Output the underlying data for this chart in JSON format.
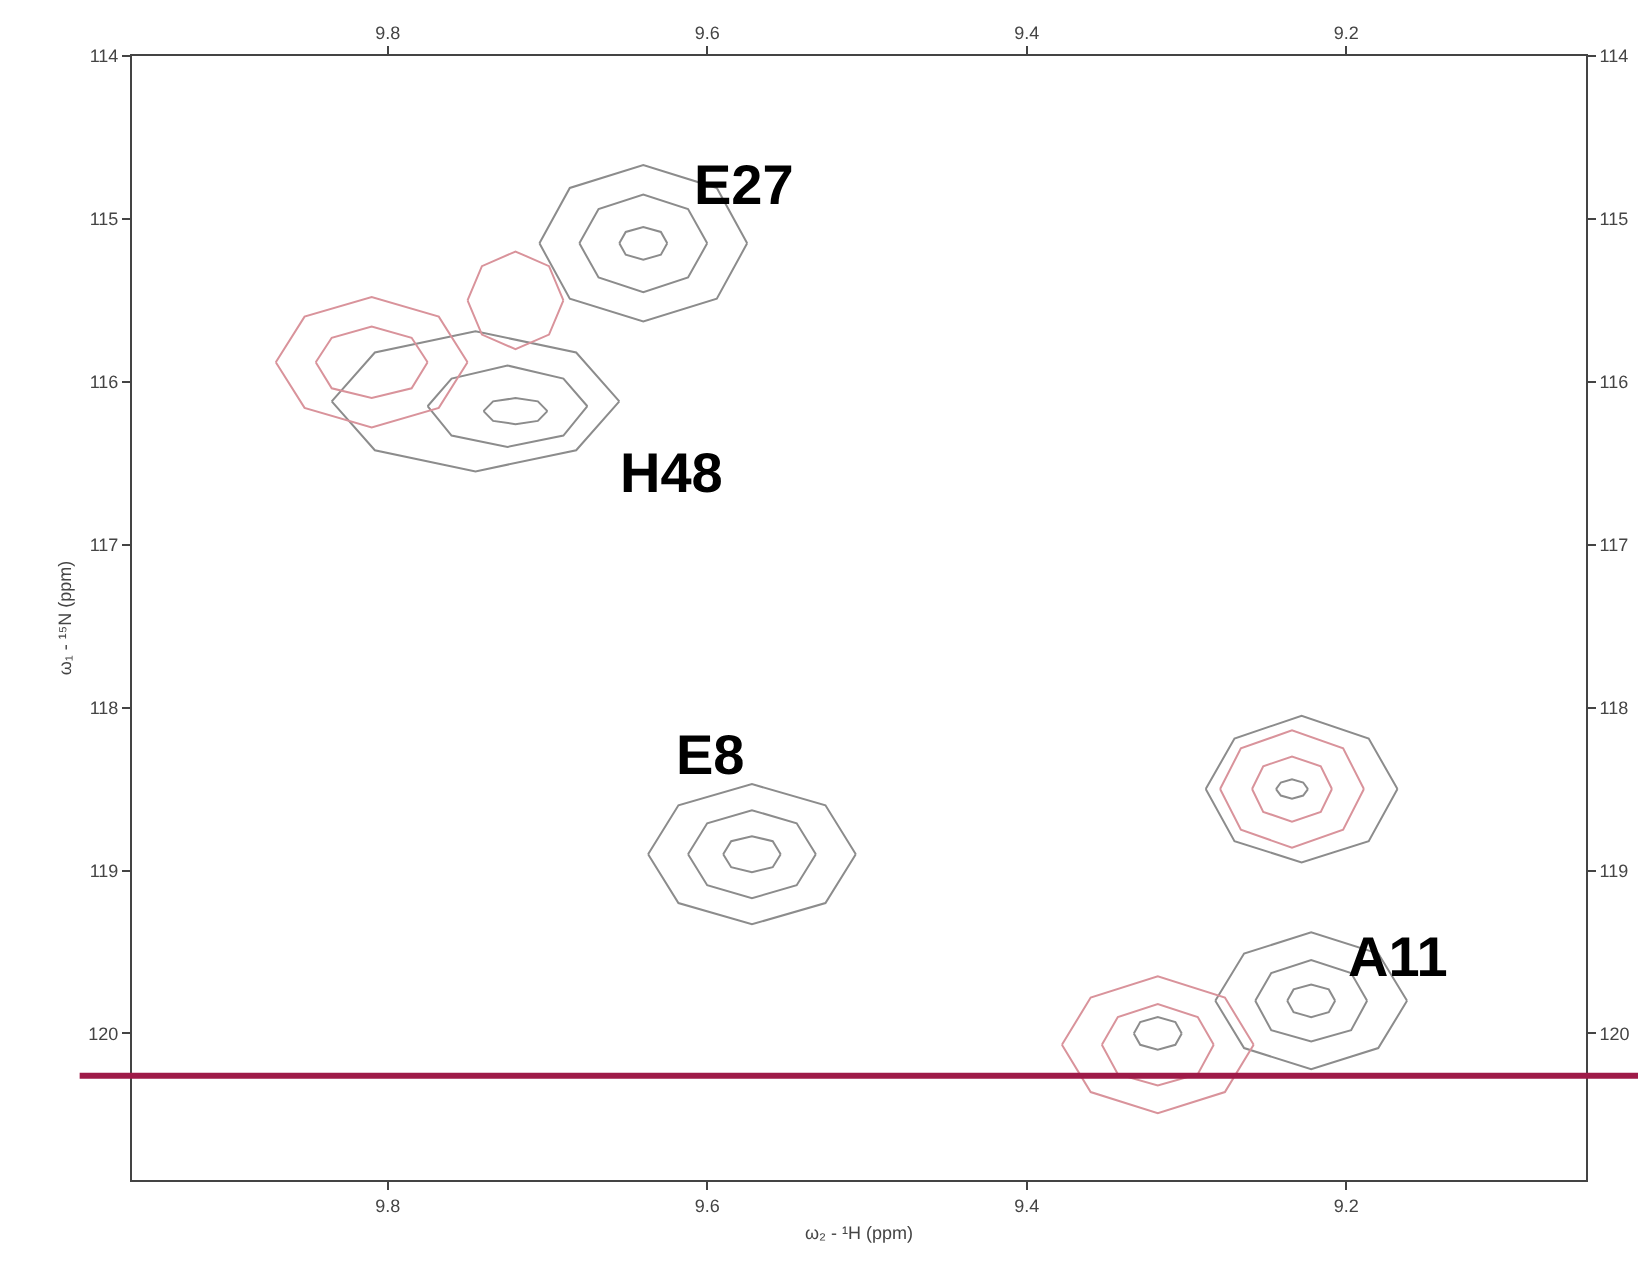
{
  "chart_data": {
    "type": "line",
    "xlabel": "ω₂ - ¹H (ppm)",
    "ylabel": "ω₁ - ¹⁵N (ppm)",
    "xlim": [
      9.96,
      9.05
    ],
    "xticks": [
      9.8,
      9.6,
      9.4,
      9.2
    ],
    "x2lim": [
      9.96,
      9.05
    ],
    "x2ticks": [
      9.8,
      9.6,
      9.4,
      9.2
    ],
    "ylim": [
      120.9,
      114
    ],
    "yticks": [
      114,
      115,
      116,
      117,
      118,
      119,
      120
    ],
    "y2lim": [
      120.9,
      114
    ],
    "y2ticks": [
      114,
      115,
      116,
      117,
      118,
      119,
      120
    ],
    "line_style": "solid",
    "series": [
      {
        "color": "#8c8c8c",
        "x": [
          9.705,
          9.686,
          9.64,
          9.594,
          9.575
        ],
        "values": [
          115.15,
          115.49,
          115.63,
          115.49,
          115.15
        ]
      },
      {
        "color": "#8c8c8c",
        "x": [
          9.575,
          9.594,
          9.64,
          9.686,
          9.705
        ],
        "values": [
          115.15,
          114.81,
          114.67,
          114.81,
          115.15
        ]
      },
      {
        "color": "#8c8c8c",
        "x": [
          9.68,
          9.668,
          9.64,
          9.612,
          9.6
        ],
        "values": [
          115.15,
          115.36,
          115.45,
          115.36,
          115.15
        ]
      },
      {
        "color": "#8c8c8c",
        "x": [
          9.6,
          9.612,
          9.64,
          9.668,
          9.68
        ],
        "values": [
          115.15,
          114.94,
          114.85,
          114.94,
          115.15
        ]
      },
      {
        "color": "#8c8c8c",
        "x": [
          9.655,
          9.651,
          9.64,
          9.629,
          9.625
        ],
        "values": [
          115.15,
          115.22,
          115.25,
          115.22,
          115.15
        ]
      },
      {
        "color": "#8c8c8c",
        "x": [
          9.625,
          9.629,
          9.64,
          9.651,
          9.655
        ],
        "values": [
          115.15,
          115.08,
          115.05,
          115.08,
          115.15
        ]
      },
      {
        "color": "#8c8c8c",
        "x": [
          9.835,
          9.808,
          9.745,
          9.682,
          9.655
        ],
        "values": [
          116.12,
          116.42,
          116.55,
          116.42,
          116.12
        ]
      },
      {
        "color": "#8c8c8c",
        "x": [
          9.655,
          9.682,
          9.745,
          9.808,
          9.835
        ],
        "values": [
          116.12,
          115.82,
          115.69,
          115.82,
          116.12
        ]
      },
      {
        "color": "#8c8c8c",
        "x": [
          9.775,
          9.76,
          9.725,
          9.69,
          9.675
        ],
        "values": [
          116.15,
          116.33,
          116.4,
          116.33,
          116.15
        ]
      },
      {
        "color": "#8c8c8c",
        "x": [
          9.675,
          9.69,
          9.725,
          9.76,
          9.775
        ],
        "values": [
          116.15,
          115.98,
          115.9,
          115.98,
          116.15
        ]
      },
      {
        "color": "#8c8c8c",
        "x": [
          9.74,
          9.734,
          9.72,
          9.706,
          9.7
        ],
        "values": [
          116.18,
          116.24,
          116.26,
          116.24,
          116.18
        ]
      },
      {
        "color": "#8c8c8c",
        "x": [
          9.7,
          9.706,
          9.72,
          9.734,
          9.74
        ],
        "values": [
          116.18,
          116.12,
          116.1,
          116.12,
          116.18
        ]
      },
      {
        "color": "#8c8c8c",
        "x": [
          9.637,
          9.618,
          9.572,
          9.526,
          9.507
        ],
        "values": [
          118.9,
          119.2,
          119.33,
          119.2,
          118.9
        ]
      },
      {
        "color": "#8c8c8c",
        "x": [
          9.507,
          9.526,
          9.572,
          9.618,
          9.637
        ],
        "values": [
          118.9,
          118.6,
          118.47,
          118.6,
          118.9
        ]
      },
      {
        "color": "#8c8c8c",
        "x": [
          9.612,
          9.6,
          9.572,
          9.544,
          9.532
        ],
        "values": [
          118.9,
          119.09,
          119.17,
          119.09,
          118.9
        ]
      },
      {
        "color": "#8c8c8c",
        "x": [
          9.532,
          9.544,
          9.572,
          9.6,
          9.612
        ],
        "values": [
          118.9,
          118.71,
          118.63,
          118.71,
          118.9
        ]
      },
      {
        "color": "#8c8c8c",
        "x": [
          9.59,
          9.585,
          9.572,
          9.559,
          9.554
        ],
        "values": [
          118.9,
          118.98,
          119.01,
          118.98,
          118.9
        ]
      },
      {
        "color": "#8c8c8c",
        "x": [
          9.554,
          9.559,
          9.572,
          9.585,
          9.59
        ],
        "values": [
          118.9,
          118.82,
          118.79,
          118.82,
          118.9
        ]
      },
      {
        "color": "#8c8c8c",
        "x": [
          9.288,
          9.27,
          9.228,
          9.186,
          9.168
        ],
        "values": [
          118.5,
          118.82,
          118.95,
          118.82,
          118.5
        ]
      },
      {
        "color": "#8c8c8c",
        "x": [
          9.168,
          9.186,
          9.228,
          9.27,
          9.288
        ],
        "values": [
          118.5,
          118.19,
          118.05,
          118.19,
          118.5
        ]
      },
      {
        "color": "#8c8c8c",
        "x": [
          9.244,
          9.241,
          9.234,
          9.227,
          9.224
        ],
        "values": [
          118.5,
          118.54,
          118.56,
          118.54,
          118.5
        ]
      },
      {
        "color": "#8c8c8c",
        "x": [
          9.224,
          9.227,
          9.234,
          9.241,
          9.244
        ],
        "values": [
          118.5,
          118.46,
          118.44,
          118.46,
          118.5
        ]
      },
      {
        "color": "#8c8c8c",
        "x": [
          9.282,
          9.264,
          9.222,
          9.18,
          9.162
        ],
        "values": [
          119.8,
          120.09,
          120.22,
          120.09,
          119.8
        ]
      },
      {
        "color": "#8c8c8c",
        "x": [
          9.162,
          9.18,
          9.222,
          9.264,
          9.282
        ],
        "values": [
          119.8,
          119.51,
          119.38,
          119.51,
          119.8
        ]
      },
      {
        "color": "#8c8c8c",
        "x": [
          9.257,
          9.247,
          9.222,
          9.197,
          9.187
        ],
        "values": [
          119.8,
          119.98,
          120.05,
          119.98,
          119.8
        ]
      },
      {
        "color": "#8c8c8c",
        "x": [
          9.187,
          9.197,
          9.222,
          9.247,
          9.257
        ],
        "values": [
          119.8,
          119.63,
          119.55,
          119.63,
          119.8
        ]
      },
      {
        "color": "#8c8c8c",
        "x": [
          9.237,
          9.233,
          9.222,
          9.211,
          9.207
        ],
        "values": [
          119.8,
          119.87,
          119.9,
          119.87,
          119.8
        ]
      },
      {
        "color": "#8c8c8c",
        "x": [
          9.207,
          9.211,
          9.222,
          9.233,
          9.237
        ],
        "values": [
          119.8,
          119.73,
          119.7,
          119.73,
          119.8
        ]
      },
      {
        "color": "#8c8c8c",
        "x": [
          9.333,
          9.329,
          9.318,
          9.307,
          9.303
        ],
        "values": [
          120.0,
          120.07,
          120.1,
          120.07,
          120.0
        ]
      },
      {
        "color": "#8c8c8c",
        "x": [
          9.303,
          9.307,
          9.318,
          9.329,
          9.333
        ],
        "values": [
          120.0,
          119.93,
          119.9,
          119.93,
          120.0
        ]
      },
      {
        "color": "#d9939b",
        "x": [
          9.279,
          9.266,
          9.234,
          9.202,
          9.189
        ],
        "values": [
          118.5,
          118.75,
          118.86,
          118.75,
          118.5
        ]
      },
      {
        "color": "#d9939b",
        "x": [
          9.189,
          9.202,
          9.234,
          9.266,
          9.279
        ],
        "values": [
          118.5,
          118.25,
          118.14,
          118.25,
          118.5
        ]
      },
      {
        "color": "#d9939b",
        "x": [
          9.259,
          9.252,
          9.234,
          9.216,
          9.209
        ],
        "values": [
          118.5,
          118.64,
          118.7,
          118.64,
          118.5
        ]
      },
      {
        "color": "#d9939b",
        "x": [
          9.209,
          9.216,
          9.234,
          9.252,
          9.259
        ],
        "values": [
          118.5,
          118.36,
          118.3,
          118.36,
          118.5
        ]
      },
      {
        "color": "#d9939b",
        "x": [
          9.378,
          9.36,
          9.318,
          9.276,
          9.258
        ],
        "values": [
          120.07,
          120.36,
          120.49,
          120.36,
          120.07
        ]
      },
      {
        "color": "#d9939b",
        "x": [
          9.258,
          9.276,
          9.318,
          9.36,
          9.378
        ],
        "values": [
          120.07,
          119.78,
          119.65,
          119.78,
          120.07
        ]
      },
      {
        "color": "#d9939b",
        "x": [
          9.353,
          9.343,
          9.318,
          9.293,
          9.283
        ],
        "values": [
          120.07,
          120.25,
          120.32,
          120.25,
          120.07
        ]
      },
      {
        "color": "#d9939b",
        "x": [
          9.283,
          9.293,
          9.318,
          9.343,
          9.353
        ],
        "values": [
          120.07,
          119.9,
          119.82,
          119.9,
          120.07
        ]
      },
      {
        "color": "#d9939b",
        "x": [
          9.87,
          9.852,
          9.81,
          9.768,
          9.75
        ],
        "values": [
          115.88,
          116.16,
          116.28,
          116.16,
          115.88
        ]
      },
      {
        "color": "#d9939b",
        "x": [
          9.75,
          9.768,
          9.81,
          9.852,
          9.87
        ],
        "values": [
          115.88,
          115.6,
          115.48,
          115.6,
          115.88
        ]
      },
      {
        "color": "#d9939b",
        "x": [
          9.845,
          9.835,
          9.81,
          9.785,
          9.775
        ],
        "values": [
          115.88,
          116.04,
          116.1,
          116.04,
          115.88
        ]
      },
      {
        "color": "#d9939b",
        "x": [
          9.775,
          9.785,
          9.81,
          9.835,
          9.845
        ],
        "values": [
          115.88,
          115.73,
          115.66,
          115.73,
          115.88
        ]
      },
      {
        "color": "#d9939b",
        "x": [
          9.75,
          9.741,
          9.72,
          9.699,
          9.69
        ],
        "values": [
          115.5,
          115.71,
          115.8,
          115.71,
          115.5
        ]
      },
      {
        "color": "#d9939b",
        "x": [
          9.69,
          9.699,
          9.72,
          9.741,
          9.75
        ],
        "values": [
          115.5,
          115.29,
          115.2,
          115.29,
          115.5
        ]
      }
    ],
    "annotations": [
      "E27",
      "H48",
      "E8",
      "A11"
    ],
    "ref_lines": [
      {
        "axis": "y",
        "value": 120.26,
        "color": "#9e1a48"
      }
    ]
  }
}
